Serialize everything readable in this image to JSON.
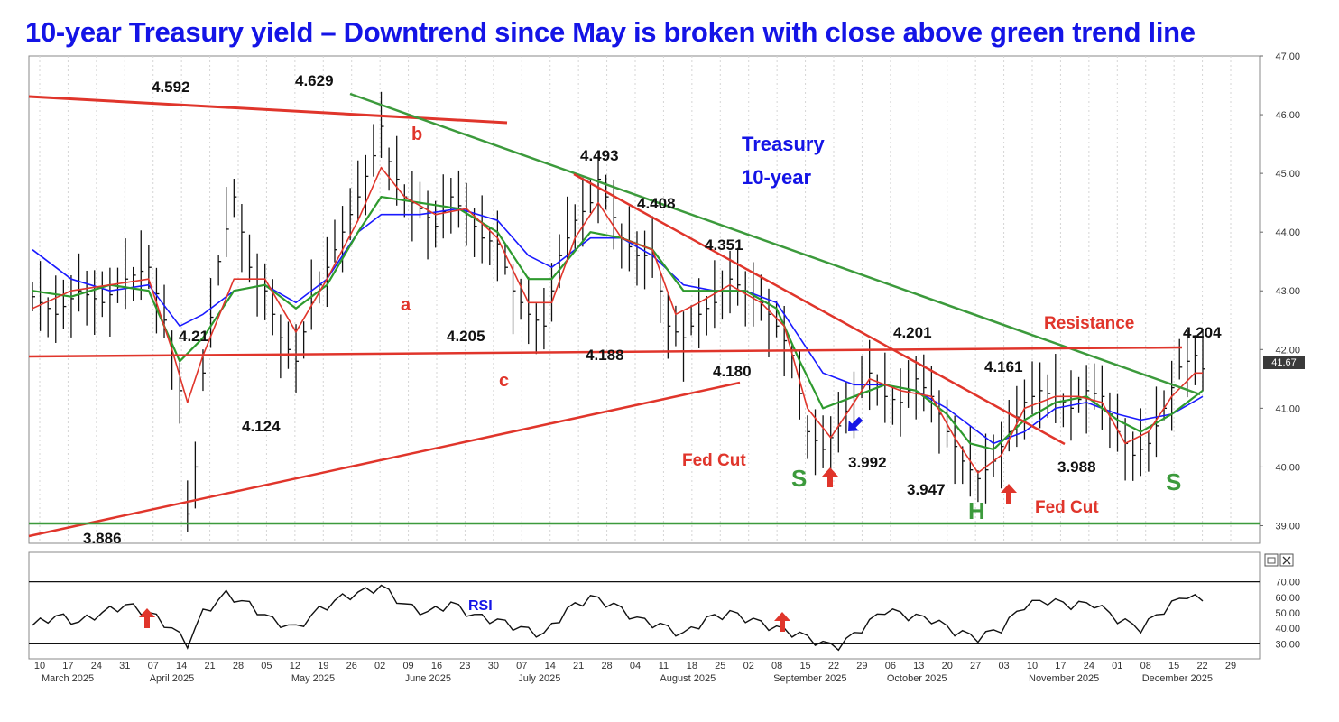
{
  "title": "10-year Treasury yield – Downtrend since May is broken with close above green trend line",
  "chart_data": {
    "type": "line",
    "title": "10-year Treasury yield – Downtrend since May is broken with close above green trend line",
    "series_label": "Treasury 10-year",
    "y_ticks": [
      "39.00",
      "40.00",
      "41.00",
      "42.00",
      "43.00",
      "44.00",
      "45.00",
      "46.00",
      "47.00"
    ],
    "ylim": [
      38.7,
      47.0
    ],
    "last_value": "41.67",
    "x_day_labels": [
      "10",
      "17",
      "24",
      "31",
      "07",
      "14",
      "21",
      "28",
      "05",
      "12",
      "19",
      "26",
      "02",
      "09",
      "16",
      "23",
      "30",
      "07",
      "14",
      "21",
      "28",
      "04",
      "11",
      "18",
      "25",
      "02",
      "08",
      "15",
      "22",
      "29",
      "06",
      "13",
      "20",
      "27",
      "03",
      "10",
      "17",
      "24",
      "01",
      "08",
      "15",
      "22",
      "29"
    ],
    "x_month_labels": [
      "March 2025",
      "April 2025",
      "May 2025",
      "June 2025",
      "July 2025",
      "August 2025",
      "September 2025",
      "October 2025",
      "November 2025",
      "December 2025"
    ],
    "price_path": [
      [
        0,
        42.9
      ],
      [
        3,
        42.6
      ],
      [
        6,
        43.0
      ],
      [
        9,
        42.8
      ],
      [
        12,
        43.2
      ],
      [
        15,
        43.4
      ],
      [
        17,
        42.5
      ],
      [
        19,
        41.3
      ],
      [
        20,
        39.2
      ],
      [
        21,
        40.0
      ],
      [
        22,
        41.6
      ],
      [
        24,
        43.5
      ],
      [
        26,
        44.6
      ],
      [
        28,
        43.4
      ],
      [
        30,
        43.0
      ],
      [
        32,
        42.2
      ],
      [
        34,
        41.8
      ],
      [
        36,
        42.8
      ],
      [
        38,
        43.4
      ],
      [
        40,
        44.0
      ],
      [
        42,
        44.6
      ],
      [
        44,
        45.3
      ],
      [
        45,
        45.8
      ],
      [
        46,
        45.2
      ],
      [
        48,
        44.6
      ],
      [
        50,
        44.4
      ],
      [
        52,
        44.1
      ],
      [
        54,
        44.6
      ],
      [
        56,
        44.3
      ],
      [
        58,
        43.9
      ],
      [
        60,
        43.8
      ],
      [
        62,
        43.0
      ],
      [
        64,
        42.6
      ],
      [
        66,
        42.4
      ],
      [
        68,
        43.6
      ],
      [
        70,
        44.2
      ],
      [
        72,
        44.5
      ],
      [
        73,
        44.9
      ],
      [
        74,
        44.6
      ],
      [
        76,
        43.9
      ],
      [
        78,
        43.6
      ],
      [
        80,
        43.6
      ],
      [
        82,
        42.4
      ],
      [
        84,
        42.2
      ],
      [
        86,
        42.6
      ],
      [
        88,
        42.8
      ],
      [
        90,
        43.2
      ],
      [
        92,
        43.0
      ],
      [
        94,
        42.8
      ],
      [
        96,
        42.4
      ],
      [
        98,
        41.9
      ],
      [
        100,
        40.6
      ],
      [
        102,
        40.3
      ],
      [
        104,
        40.7
      ],
      [
        106,
        41.2
      ],
      [
        108,
        41.6
      ],
      [
        110,
        41.2
      ],
      [
        112,
        41.1
      ],
      [
        114,
        41.5
      ],
      [
        116,
        41.2
      ],
      [
        118,
        40.6
      ],
      [
        120,
        40.1
      ],
      [
        122,
        39.8
      ],
      [
        124,
        40.1
      ],
      [
        126,
        40.6
      ],
      [
        128,
        41.1
      ],
      [
        130,
        41.3
      ],
      [
        132,
        41.2
      ],
      [
        134,
        41.0
      ],
      [
        136,
        41.3
      ],
      [
        138,
        41.2
      ],
      [
        140,
        40.6
      ],
      [
        142,
        40.2
      ],
      [
        144,
        40.4
      ],
      [
        146,
        41.0
      ],
      [
        148,
        41.7
      ],
      [
        150,
        41.9
      ],
      [
        151,
        41.67
      ]
    ],
    "ma_fast": [
      [
        0,
        42.7
      ],
      [
        5,
        43.0
      ],
      [
        10,
        43.1
      ],
      [
        15,
        43.2
      ],
      [
        18,
        42.0
      ],
      [
        20,
        41.1
      ],
      [
        22,
        41.9
      ],
      [
        26,
        43.2
      ],
      [
        30,
        43.2
      ],
      [
        34,
        42.3
      ],
      [
        38,
        43.2
      ],
      [
        42,
        44.2
      ],
      [
        45,
        45.1
      ],
      [
        48,
        44.6
      ],
      [
        52,
        44.3
      ],
      [
        56,
        44.4
      ],
      [
        60,
        43.9
      ],
      [
        64,
        42.8
      ],
      [
        67,
        42.8
      ],
      [
        70,
        43.9
      ],
      [
        73,
        44.5
      ],
      [
        76,
        43.9
      ],
      [
        80,
        43.7
      ],
      [
        83,
        42.6
      ],
      [
        86,
        42.8
      ],
      [
        90,
        43.1
      ],
      [
        94,
        42.8
      ],
      [
        97,
        42.4
      ],
      [
        100,
        41.0
      ],
      [
        103,
        40.5
      ],
      [
        106,
        41.1
      ],
      [
        108,
        41.5
      ],
      [
        112,
        41.3
      ],
      [
        116,
        41.2
      ],
      [
        119,
        40.5
      ],
      [
        122,
        39.9
      ],
      [
        125,
        40.2
      ],
      [
        128,
        41.0
      ],
      [
        132,
        41.2
      ],
      [
        135,
        41.2
      ],
      [
        138,
        41.1
      ],
      [
        141,
        40.4
      ],
      [
        144,
        40.6
      ],
      [
        147,
        41.2
      ],
      [
        150,
        41.6
      ],
      [
        151,
        41.6
      ]
    ],
    "ma_mid": [
      [
        0,
        43.0
      ],
      [
        5,
        42.9
      ],
      [
        10,
        43.1
      ],
      [
        15,
        43.0
      ],
      [
        19,
        41.8
      ],
      [
        22,
        42.2
      ],
      [
        26,
        43.0
      ],
      [
        30,
        43.1
      ],
      [
        34,
        42.7
      ],
      [
        38,
        43.1
      ],
      [
        42,
        44.0
      ],
      [
        45,
        44.6
      ],
      [
        50,
        44.5
      ],
      [
        55,
        44.4
      ],
      [
        60,
        44.0
      ],
      [
        64,
        43.2
      ],
      [
        67,
        43.2
      ],
      [
        72,
        44.0
      ],
      [
        76,
        43.9
      ],
      [
        80,
        43.7
      ],
      [
        84,
        43.0
      ],
      [
        88,
        43.0
      ],
      [
        92,
        43.0
      ],
      [
        96,
        42.7
      ],
      [
        99,
        41.8
      ],
      [
        102,
        41.0
      ],
      [
        106,
        41.2
      ],
      [
        110,
        41.4
      ],
      [
        114,
        41.3
      ],
      [
        118,
        40.9
      ],
      [
        121,
        40.4
      ],
      [
        124,
        40.3
      ],
      [
        128,
        40.8
      ],
      [
        132,
        41.1
      ],
      [
        136,
        41.2
      ],
      [
        140,
        40.8
      ],
      [
        143,
        40.6
      ],
      [
        147,
        40.9
      ],
      [
        151,
        41.3
      ]
    ],
    "ma_slow": [
      [
        0,
        43.7
      ],
      [
        5,
        43.2
      ],
      [
        10,
        43.0
      ],
      [
        15,
        43.1
      ],
      [
        19,
        42.4
      ],
      [
        22,
        42.6
      ],
      [
        26,
        43.0
      ],
      [
        30,
        43.1
      ],
      [
        34,
        42.8
      ],
      [
        38,
        43.2
      ],
      [
        42,
        44.0
      ],
      [
        45,
        44.3
      ],
      [
        50,
        44.3
      ],
      [
        55,
        44.4
      ],
      [
        60,
        44.2
      ],
      [
        64,
        43.6
      ],
      [
        67,
        43.4
      ],
      [
        72,
        43.9
      ],
      [
        76,
        43.9
      ],
      [
        80,
        43.6
      ],
      [
        84,
        43.1
      ],
      [
        88,
        43.0
      ],
      [
        92,
        43.0
      ],
      [
        96,
        42.8
      ],
      [
        99,
        42.2
      ],
      [
        102,
        41.6
      ],
      [
        106,
        41.4
      ],
      [
        110,
        41.4
      ],
      [
        114,
        41.3
      ],
      [
        118,
        41.0
      ],
      [
        121,
        40.7
      ],
      [
        124,
        40.4
      ],
      [
        128,
        40.6
      ],
      [
        132,
        41.0
      ],
      [
        136,
        41.1
      ],
      [
        140,
        40.9
      ],
      [
        143,
        40.8
      ],
      [
        147,
        40.9
      ],
      [
        151,
        41.2
      ]
    ],
    "rsi": {
      "label": "RSI",
      "y_ticks": [
        "70.00",
        "60.00",
        "50.00",
        "40.00",
        "30.00"
      ],
      "ylim": [
        25,
        75
      ],
      "levels": [
        70,
        30
      ],
      "values": [
        [
          0,
          42
        ],
        [
          3,
          48
        ],
        [
          6,
          44
        ],
        [
          9,
          50
        ],
        [
          12,
          55
        ],
        [
          15,
          50
        ],
        [
          18,
          40
        ],
        [
          20,
          30
        ],
        [
          22,
          50
        ],
        [
          25,
          62
        ],
        [
          28,
          55
        ],
        [
          31,
          45
        ],
        [
          34,
          40
        ],
        [
          37,
          52
        ],
        [
          40,
          60
        ],
        [
          43,
          64
        ],
        [
          45,
          67
        ],
        [
          48,
          55
        ],
        [
          51,
          50
        ],
        [
          54,
          56
        ],
        [
          57,
          48
        ],
        [
          60,
          45
        ],
        [
          63,
          40
        ],
        [
          66,
          36
        ],
        [
          69,
          52
        ],
        [
          72,
          60
        ],
        [
          75,
          55
        ],
        [
          78,
          46
        ],
        [
          81,
          42
        ],
        [
          84,
          36
        ],
        [
          87,
          46
        ],
        [
          90,
          50
        ],
        [
          93,
          45
        ],
        [
          96,
          40
        ],
        [
          99,
          36
        ],
        [
          102,
          30
        ],
        [
          104,
          28
        ],
        [
          107,
          40
        ],
        [
          110,
          52
        ],
        [
          113,
          48
        ],
        [
          116,
          46
        ],
        [
          119,
          38
        ],
        [
          122,
          34
        ],
        [
          125,
          40
        ],
        [
          128,
          55
        ],
        [
          131,
          58
        ],
        [
          134,
          55
        ],
        [
          137,
          56
        ],
        [
          140,
          46
        ],
        [
          143,
          40
        ],
        [
          146,
          52
        ],
        [
          149,
          62
        ],
        [
          151,
          57
        ]
      ]
    },
    "annotations": [
      "4.592",
      "4.629",
      "4.493",
      "4.408",
      "4.351",
      "4.201",
      "4.204",
      "4.21",
      "4.124",
      "4.205",
      "4.188",
      "4.180",
      "4.161",
      "3.992",
      "3.947",
      "3.988",
      "3.886",
      "a",
      "b",
      "c",
      "S",
      "H",
      "S",
      "Fed Cut",
      "Fed Cut",
      "Resistance",
      "Treasury",
      "10-year"
    ]
  }
}
